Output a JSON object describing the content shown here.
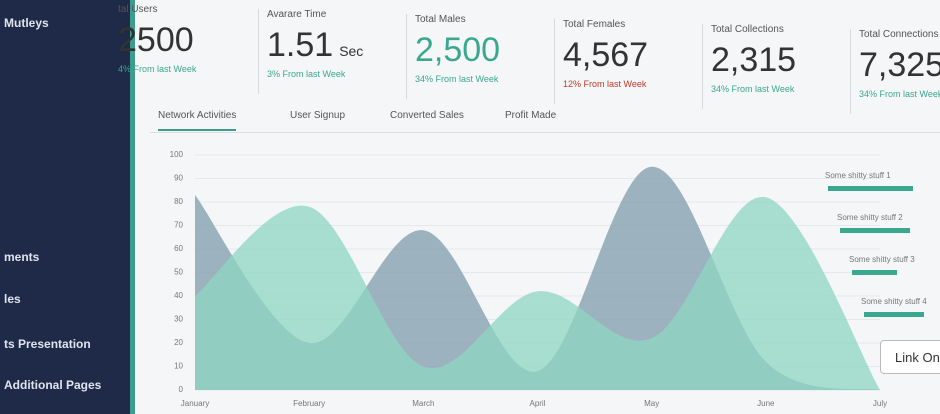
{
  "sidebar": {
    "items": [
      "Mutleys",
      "ments",
      "les",
      "ts Presentation",
      "Additional Pages"
    ]
  },
  "stats": [
    {
      "label": "tal Users",
      "value": "2500",
      "unit": null,
      "change": "4% From last Week",
      "trend": "up"
    },
    {
      "label": "Avarare Time",
      "value": "1.51",
      "unit": "Sec",
      "change": "3% From last Week",
      "trend": "up"
    },
    {
      "label": "Total Males",
      "value": "2,500",
      "unit": null,
      "change": "34% From last Week",
      "trend": "up"
    },
    {
      "label": "Total Females",
      "value": "4,567",
      "unit": null,
      "change": "12% From last Week",
      "trend": "down"
    },
    {
      "label": "Total Collections",
      "value": "2,315",
      "unit": null,
      "change": "34% From last Week",
      "trend": "up"
    },
    {
      "label": "Total Connections",
      "value": "7,325",
      "unit": null,
      "change": "34% From last Week",
      "trend": "up"
    }
  ],
  "tabs": [
    "Network Activities",
    "User Signup",
    "Converted Sales",
    "Profit Made"
  ],
  "chart": {
    "type": "area",
    "categories": [
      "January",
      "February",
      "March",
      "April",
      "May",
      "June",
      "July"
    ],
    "ylim": [
      0,
      100
    ],
    "yticks": [
      0,
      10,
      20,
      30,
      40,
      50,
      60,
      70,
      80,
      90,
      100
    ],
    "series": [
      {
        "color": "#7f9bab",
        "values": [
          83,
          20,
          68,
          8,
          95,
          12,
          0
        ]
      },
      {
        "color": "#8fd6c3",
        "values": [
          40,
          78,
          10,
          42,
          22,
          82,
          0
        ]
      }
    ]
  },
  "legend": [
    {
      "label": "Some shitty stuff 1",
      "value": 85
    },
    {
      "label": "Some shitty stuff 2",
      "value": 70
    },
    {
      "label": "Some shitty stuff 3",
      "value": 45
    },
    {
      "label": "Some shitty stuff 4",
      "value": 60
    }
  ],
  "button": "Link On"
}
